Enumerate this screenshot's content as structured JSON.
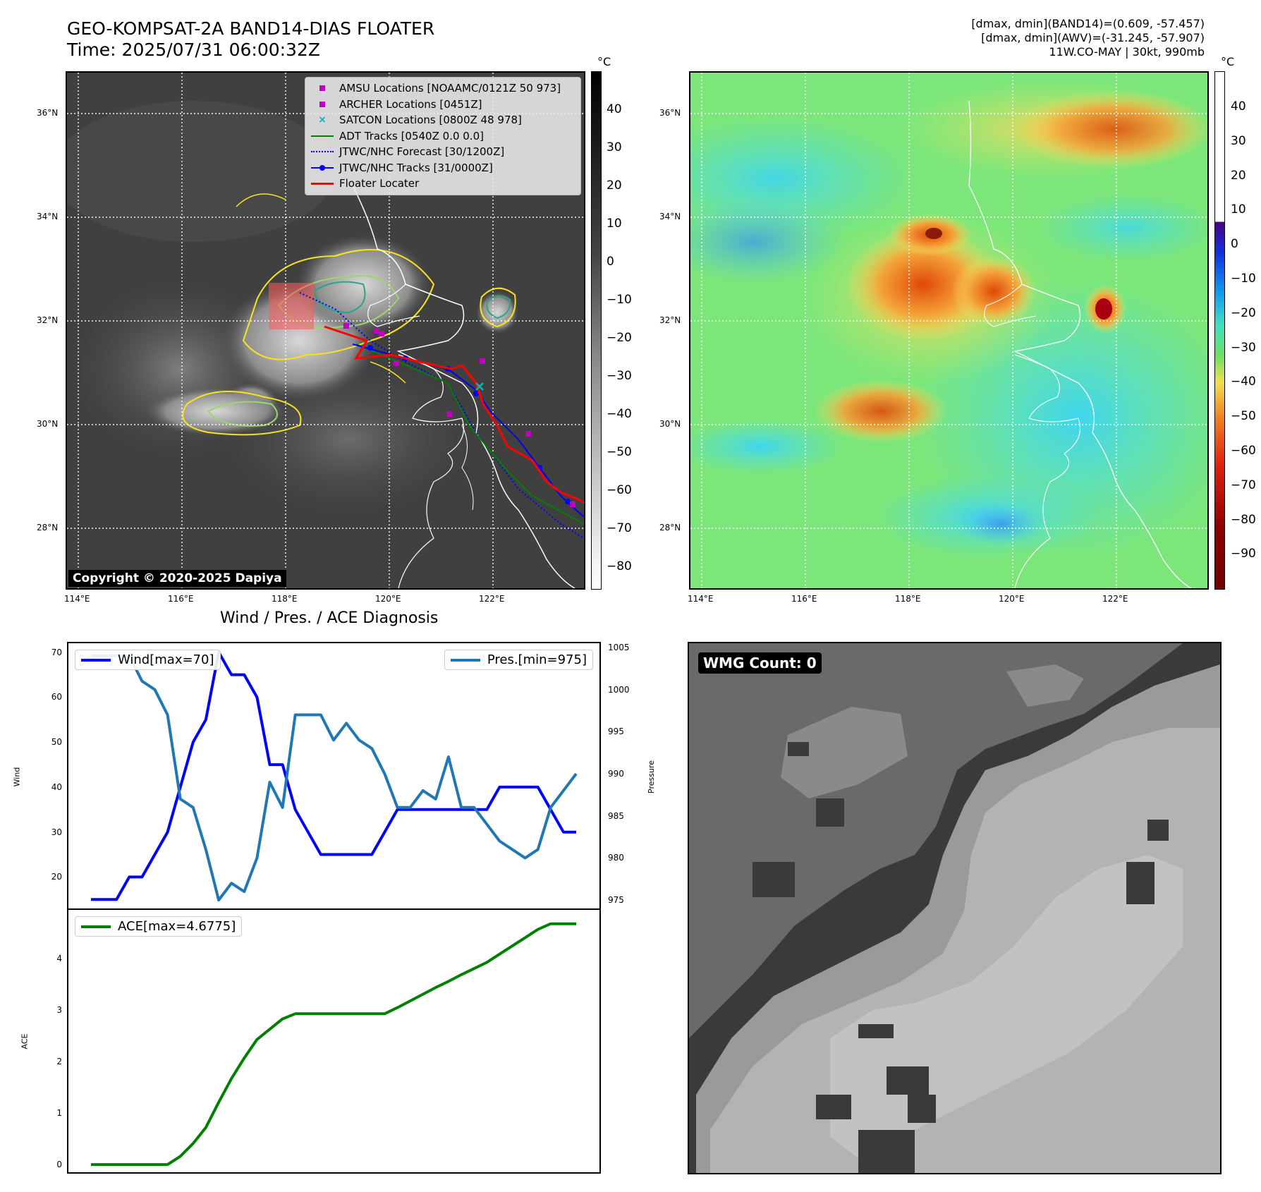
{
  "header": {
    "title_line1": "GEO-KOMPSAT-2A BAND14-DIAS FLOATER",
    "title_line2": "Time: 2025/07/31 06:00:32Z",
    "info_line1": "[dmax, dmin](BAND14)=(0.609, -57.457)",
    "info_line2": "[dmax, dmin](AWV)=(-31.245, -57.907)",
    "info_line3": "11W.CO-MAY | 30kt, 990mb"
  },
  "ir_panel": {
    "copyright": "Copyright © 2020-2025 Dapiya",
    "lat_ticks": [
      "36°N",
      "34°N",
      "32°N",
      "30°N",
      "28°N"
    ],
    "lon_ticks": [
      "114°E",
      "116°E",
      "118°E",
      "120°E",
      "122°E"
    ],
    "colorbar_unit": "°C",
    "colorbar_ticks": [
      "40",
      "30",
      "20",
      "10",
      "0",
      "−10",
      "−20",
      "−30",
      "−40",
      "−50",
      "−60",
      "−70",
      "−80"
    ],
    "legend": [
      {
        "label": "AMSU Locations [NOAAMC/0121Z 50 973]",
        "symbol": "square",
        "color": "#c000c0"
      },
      {
        "label": "ARCHER Locations [0451Z]",
        "symbol": "square",
        "color": "#c000c0"
      },
      {
        "label": "SATCON Locations [0800Z 48 978]",
        "symbol": "x",
        "color": "#00b5b5"
      },
      {
        "label": "ADT Tracks [0540Z 0.0 0.0]",
        "symbol": "line",
        "color": "#008000"
      },
      {
        "label": "JTWC/NHC Forecast [30/1200Z]",
        "symbol": "dotted",
        "color": "#0000ff"
      },
      {
        "label": "JTWC/NHC Tracks [31/0000Z]",
        "symbol": "line-dot",
        "color": "#0000ff"
      },
      {
        "label": "Floater Locater",
        "symbol": "line",
        "color": "#ff0000"
      }
    ]
  },
  "wv_panel": {
    "lat_ticks": [
      "36°N",
      "34°N",
      "32°N",
      "30°N",
      "28°N"
    ],
    "lon_ticks": [
      "114°E",
      "116°E",
      "118°E",
      "120°E",
      "122°E"
    ],
    "colorbar_unit": "°C",
    "colorbar_ticks": [
      "40",
      "30",
      "20",
      "10",
      "0",
      "−10",
      "−20",
      "−30",
      "−40",
      "−50",
      "−60",
      "−70",
      "−80",
      "−90"
    ]
  },
  "diagnosis": {
    "title": "Wind / Pres. / ACE Diagnosis",
    "wind_legend": "Wind[max=70]",
    "pres_legend": "Pres.[min=975]",
    "ace_legend": "ACE[max=4.6775]",
    "wind_axis_label": "Wind",
    "pres_axis_label": "Pressure",
    "ace_axis_label": "ACE"
  },
  "wmg_panel": {
    "label": "WMG Count: 0"
  },
  "chart_data": [
    {
      "type": "line",
      "title": "",
      "ylabel": "Wind",
      "ylim": [
        13,
        72
      ],
      "yticks": [
        20,
        30,
        40,
        50,
        60,
        70
      ],
      "series": [
        {
          "name": "Wind[max=70]",
          "color": "#0000ff",
          "axis": "left",
          "values": [
            15,
            15,
            15,
            20,
            20,
            25,
            30,
            40,
            50,
            55,
            70,
            65,
            65,
            60,
            45,
            45,
            35,
            30,
            25,
            25,
            25,
            25,
            25,
            30,
            35,
            35,
            35,
            35,
            35,
            35,
            35,
            35,
            40,
            40,
            40,
            40,
            35,
            30,
            30
          ]
        }
      ]
    },
    {
      "type": "line",
      "title": "",
      "ylabel": "Pressure",
      "ylim": [
        974,
        1005.5
      ],
      "yticks": [
        975,
        980,
        985,
        990,
        995,
        1000,
        1005
      ],
      "series": [
        {
          "name": "Pres.[min=975]",
          "color": "#1f77b4",
          "axis": "right",
          "values": [
            1004,
            1004,
            1004,
            1004,
            1001,
            1000,
            997,
            987,
            986,
            981,
            975,
            977,
            976,
            980,
            989,
            986,
            997,
            997,
            997,
            994,
            996,
            994,
            993,
            990,
            986,
            986,
            988,
            987,
            992,
            986,
            986,
            984,
            982,
            981,
            980,
            981,
            986,
            988,
            990
          ]
        }
      ]
    },
    {
      "type": "line",
      "title": "",
      "ylabel": "ACE",
      "ylim": [
        -0.15,
        4.95
      ],
      "yticks": [
        0,
        1,
        2,
        3,
        4
      ],
      "series": [
        {
          "name": "ACE[max=4.6775]",
          "color": "#008000",
          "values": [
            0,
            0,
            0,
            0,
            0,
            0,
            0,
            0.16,
            0.41,
            0.72,
            1.21,
            1.67,
            2.07,
            2.43,
            2.63,
            2.83,
            2.93,
            2.93,
            2.93,
            2.93,
            2.93,
            2.93,
            2.93,
            2.93,
            3.05,
            3.18,
            3.31,
            3.44,
            3.56,
            3.69,
            3.81,
            3.93,
            4.09,
            4.25,
            4.41,
            4.57,
            4.68,
            4.68,
            4.68
          ]
        }
      ]
    }
  ]
}
